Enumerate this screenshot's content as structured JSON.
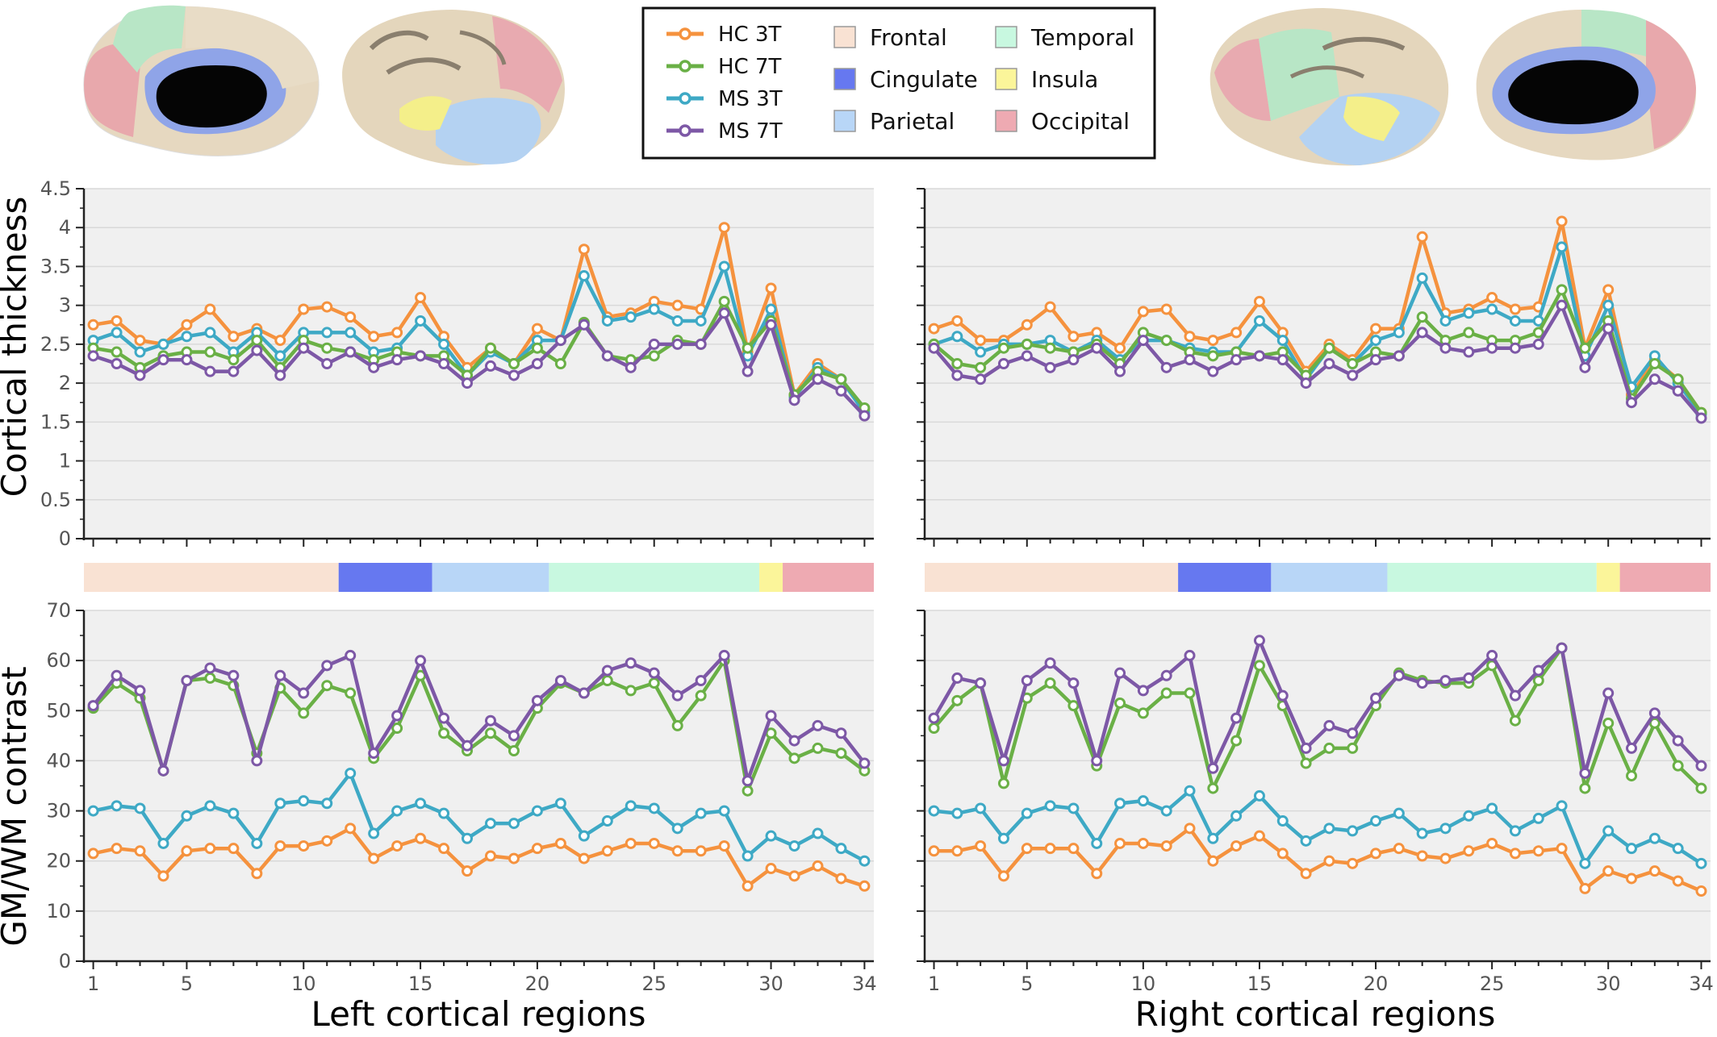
{
  "colors": {
    "HC 3T": "#f5923e",
    "HC 7T": "#6ab046",
    "MS 3T": "#3ea9c5",
    "MS 7T": "#7d58a6",
    "Frontal": "#f9e2d3",
    "Cingulate": "#6678f0",
    "Parietal": "#b8d6f7",
    "Temporal": "#c8f8e0",
    "Insula": "#fbf59a",
    "Occipital": "#eeaab2",
    "panel_bg": "#f0f0f0"
  },
  "legend": {
    "series": [
      "HC 3T",
      "HC 7T",
      "MS 3T",
      "MS 7T"
    ],
    "regions": [
      "Frontal",
      "Cingulate",
      "Parietal",
      "Temporal",
      "Insula",
      "Occipital"
    ]
  },
  "axes": {
    "top_ylabel": "Cortical thickness",
    "bottom_ylabel": "GM/WM contrast",
    "left_xlabel": "Left cortical regions",
    "right_xlabel": "Right cortical regions",
    "x_ticks": [
      "1",
      "5",
      "10",
      "15",
      "20",
      "25",
      "30",
      "34"
    ],
    "thickness_ticks": [
      "0",
      "0.5",
      "1",
      "1.5",
      "2",
      "2.5",
      "3",
      "3.5",
      "4",
      "4.5"
    ],
    "contrast_ticks": [
      "0",
      "10",
      "20",
      "30",
      "40",
      "50",
      "60",
      "70"
    ]
  },
  "region_bar": [
    {
      "region": "Frontal",
      "from": 1,
      "to": 11
    },
    {
      "region": "Cingulate",
      "from": 12,
      "to": 15
    },
    {
      "region": "Parietal",
      "from": 16,
      "to": 20
    },
    {
      "region": "Temporal",
      "from": 21,
      "to": 29
    },
    {
      "region": "Insula",
      "from": 30,
      "to": 30
    },
    {
      "region": "Occipital",
      "from": 31,
      "to": 34
    }
  ],
  "chart_data": [
    {
      "type": "line",
      "panel": "left-thickness",
      "ylabel": "Cortical thickness",
      "ylim": [
        0,
        4.5
      ],
      "x": [
        1,
        2,
        3,
        4,
        5,
        6,
        7,
        8,
        9,
        10,
        11,
        12,
        13,
        14,
        15,
        16,
        17,
        18,
        19,
        20,
        21,
        22,
        23,
        24,
        25,
        26,
        27,
        28,
        29,
        30,
        31,
        32,
        33,
        34
      ],
      "series": [
        {
          "name": "HC 3T",
          "values": [
            2.75,
            2.8,
            2.55,
            2.5,
            2.75,
            2.95,
            2.6,
            2.7,
            2.55,
            2.95,
            2.98,
            2.85,
            2.6,
            2.65,
            3.1,
            2.6,
            2.2,
            2.45,
            2.25,
            2.7,
            2.55,
            3.72,
            2.85,
            2.9,
            3.05,
            3.0,
            2.95,
            4.0,
            2.4,
            3.22,
            1.85,
            2.25,
            2.05,
            1.65
          ]
        },
        {
          "name": "HC 7T",
          "values": [
            2.45,
            2.4,
            2.2,
            2.35,
            2.4,
            2.4,
            2.3,
            2.55,
            2.2,
            2.55,
            2.45,
            2.4,
            2.3,
            2.4,
            2.35,
            2.35,
            2.1,
            2.45,
            2.25,
            2.45,
            2.25,
            2.78,
            2.35,
            2.3,
            2.35,
            2.55,
            2.5,
            3.05,
            2.45,
            2.8,
            1.85,
            2.15,
            2.05,
            1.68
          ]
        },
        {
          "name": "MS 3T",
          "values": [
            2.55,
            2.65,
            2.4,
            2.5,
            2.6,
            2.65,
            2.4,
            2.65,
            2.35,
            2.65,
            2.65,
            2.65,
            2.4,
            2.45,
            2.8,
            2.5,
            2.1,
            2.4,
            2.25,
            2.55,
            2.55,
            3.38,
            2.8,
            2.85,
            2.95,
            2.8,
            2.8,
            3.5,
            2.35,
            2.95,
            1.82,
            2.2,
            2.05,
            1.62
          ]
        },
        {
          "name": "MS 7T",
          "values": [
            2.35,
            2.25,
            2.1,
            2.3,
            2.3,
            2.15,
            2.15,
            2.42,
            2.1,
            2.45,
            2.25,
            2.4,
            2.2,
            2.3,
            2.35,
            2.25,
            2.0,
            2.22,
            2.1,
            2.25,
            2.55,
            2.75,
            2.35,
            2.2,
            2.5,
            2.5,
            2.5,
            2.9,
            2.15,
            2.75,
            1.78,
            2.05,
            1.9,
            1.58
          ]
        }
      ]
    },
    {
      "type": "line",
      "panel": "right-thickness",
      "ylabel": "Cortical thickness",
      "ylim": [
        0,
        4.5
      ],
      "x": [
        1,
        2,
        3,
        4,
        5,
        6,
        7,
        8,
        9,
        10,
        11,
        12,
        13,
        14,
        15,
        16,
        17,
        18,
        19,
        20,
        21,
        22,
        23,
        24,
        25,
        26,
        27,
        28,
        29,
        30,
        31,
        32,
        33,
        34
      ],
      "series": [
        {
          "name": "HC 3T",
          "values": [
            2.7,
            2.8,
            2.55,
            2.55,
            2.75,
            2.98,
            2.6,
            2.65,
            2.45,
            2.92,
            2.95,
            2.6,
            2.55,
            2.65,
            3.05,
            2.65,
            2.15,
            2.5,
            2.3,
            2.7,
            2.7,
            3.88,
            2.9,
            2.95,
            3.1,
            2.95,
            2.98,
            4.08,
            2.45,
            3.2,
            1.85,
            2.3,
            2.05,
            1.62
          ]
        },
        {
          "name": "HC 7T",
          "values": [
            2.5,
            2.25,
            2.2,
            2.45,
            2.5,
            2.45,
            2.4,
            2.5,
            2.25,
            2.65,
            2.55,
            2.4,
            2.35,
            2.4,
            2.35,
            2.4,
            2.1,
            2.45,
            2.25,
            2.4,
            2.35,
            2.85,
            2.55,
            2.65,
            2.55,
            2.55,
            2.65,
            3.2,
            2.45,
            2.8,
            1.8,
            2.25,
            2.05,
            1.62
          ]
        },
        {
          "name": "MS 3T",
          "values": [
            2.5,
            2.6,
            2.4,
            2.5,
            2.5,
            2.55,
            2.4,
            2.55,
            2.3,
            2.55,
            2.55,
            2.45,
            2.4,
            2.4,
            2.8,
            2.55,
            2.05,
            2.45,
            2.25,
            2.55,
            2.65,
            3.35,
            2.8,
            2.9,
            2.95,
            2.8,
            2.8,
            3.75,
            2.35,
            3.0,
            1.95,
            2.35,
            2.0,
            1.6
          ]
        },
        {
          "name": "MS 7T",
          "values": [
            2.45,
            2.1,
            2.05,
            2.25,
            2.35,
            2.2,
            2.3,
            2.45,
            2.15,
            2.55,
            2.2,
            2.3,
            2.15,
            2.3,
            2.35,
            2.3,
            2.0,
            2.25,
            2.1,
            2.3,
            2.35,
            2.65,
            2.45,
            2.4,
            2.45,
            2.45,
            2.5,
            3.0,
            2.2,
            2.7,
            1.75,
            2.05,
            1.9,
            1.55
          ]
        }
      ]
    },
    {
      "type": "line",
      "panel": "left-contrast",
      "ylabel": "GM/WM contrast",
      "ylim": [
        0,
        70
      ],
      "x": [
        1,
        2,
        3,
        4,
        5,
        6,
        7,
        8,
        9,
        10,
        11,
        12,
        13,
        14,
        15,
        16,
        17,
        18,
        19,
        20,
        21,
        22,
        23,
        24,
        25,
        26,
        27,
        28,
        29,
        30,
        31,
        32,
        33,
        34
      ],
      "series": [
        {
          "name": "HC 3T",
          "values": [
            21.5,
            22.5,
            22,
            17,
            22,
            22.5,
            22.5,
            17.5,
            23,
            23,
            24,
            26.5,
            20.5,
            23,
            24.5,
            22.5,
            18,
            21,
            20.5,
            22.5,
            23.5,
            20.5,
            22,
            23.5,
            23.5,
            22,
            22,
            23,
            15,
            18.5,
            17,
            19,
            16.5,
            15
          ]
        },
        {
          "name": "HC 7T",
          "values": [
            50.5,
            55.5,
            52.5,
            38,
            56,
            56.5,
            55,
            41.5,
            54.5,
            49.5,
            55,
            53.5,
            40.5,
            46.5,
            57,
            45.5,
            42,
            45.5,
            42,
            50.5,
            55.5,
            53.5,
            56,
            54,
            55.5,
            47,
            53,
            60,
            34,
            45.5,
            40.5,
            42.5,
            41.5,
            38
          ]
        },
        {
          "name": "MS 3T",
          "values": [
            30,
            31,
            30.5,
            23.5,
            29,
            31,
            29.5,
            23.5,
            31.5,
            32,
            31.5,
            37.5,
            25.5,
            30,
            31.5,
            29.5,
            24.5,
            27.5,
            27.5,
            30,
            31.5,
            25,
            28,
            31,
            30.5,
            26.5,
            29.5,
            30,
            21,
            25,
            23,
            25.5,
            22.5,
            20
          ]
        },
        {
          "name": "MS 7T",
          "values": [
            51,
            57,
            54,
            38,
            56,
            58.5,
            57,
            40,
            57,
            53.5,
            59,
            61,
            41.5,
            49,
            60,
            48.5,
            43,
            48,
            45,
            52,
            56,
            53.5,
            58,
            59.5,
            57.5,
            53,
            56,
            61,
            36,
            49,
            44,
            47,
            45.5,
            39.5
          ]
        }
      ]
    },
    {
      "type": "line",
      "panel": "right-contrast",
      "ylabel": "GM/WM contrast",
      "ylim": [
        0,
        70
      ],
      "x": [
        1,
        2,
        3,
        4,
        5,
        6,
        7,
        8,
        9,
        10,
        11,
        12,
        13,
        14,
        15,
        16,
        17,
        18,
        19,
        20,
        21,
        22,
        23,
        24,
        25,
        26,
        27,
        28,
        29,
        30,
        31,
        32,
        33,
        34
      ],
      "series": [
        {
          "name": "HC 3T",
          "values": [
            22,
            22,
            23,
            17,
            22.5,
            22.5,
            22.5,
            17.5,
            23.5,
            23.5,
            23,
            26.5,
            20,
            23,
            25,
            21.5,
            17.5,
            20,
            19.5,
            21.5,
            22.5,
            21,
            20.5,
            22,
            23.5,
            21.5,
            22,
            22.5,
            14.5,
            18,
            16.5,
            18,
            16,
            14
          ]
        },
        {
          "name": "HC 7T",
          "values": [
            46.5,
            52,
            55.5,
            35.5,
            52.5,
            55.5,
            51,
            39,
            51.5,
            49.5,
            53.5,
            53.5,
            34.5,
            44,
            59,
            51,
            39.5,
            42.5,
            42.5,
            51,
            57.5,
            56,
            55.5,
            55.5,
            59,
            48,
            56,
            62.5,
            34.5,
            47.5,
            37,
            47.5,
            39,
            34.5
          ]
        },
        {
          "name": "MS 3T",
          "values": [
            30,
            29.5,
            30.5,
            24.5,
            29.5,
            31,
            30.5,
            23.5,
            31.5,
            32,
            30,
            34,
            24.5,
            29,
            33,
            28,
            24,
            26.5,
            26,
            28,
            29.5,
            25.5,
            26.5,
            29,
            30.5,
            26,
            28.5,
            31,
            19.5,
            26,
            22.5,
            24.5,
            22.5,
            19.5
          ]
        },
        {
          "name": "MS 7T",
          "values": [
            48.5,
            56.5,
            55.5,
            40,
            56,
            59.5,
            55.5,
            40,
            57.5,
            54,
            57,
            61,
            38.5,
            48.5,
            64,
            53,
            42.5,
            47,
            45.5,
            52.5,
            57,
            55.5,
            56,
            56.5,
            61,
            53,
            58,
            62.5,
            37.5,
            53.5,
            42.5,
            49.5,
            44,
            39
          ]
        }
      ]
    }
  ]
}
